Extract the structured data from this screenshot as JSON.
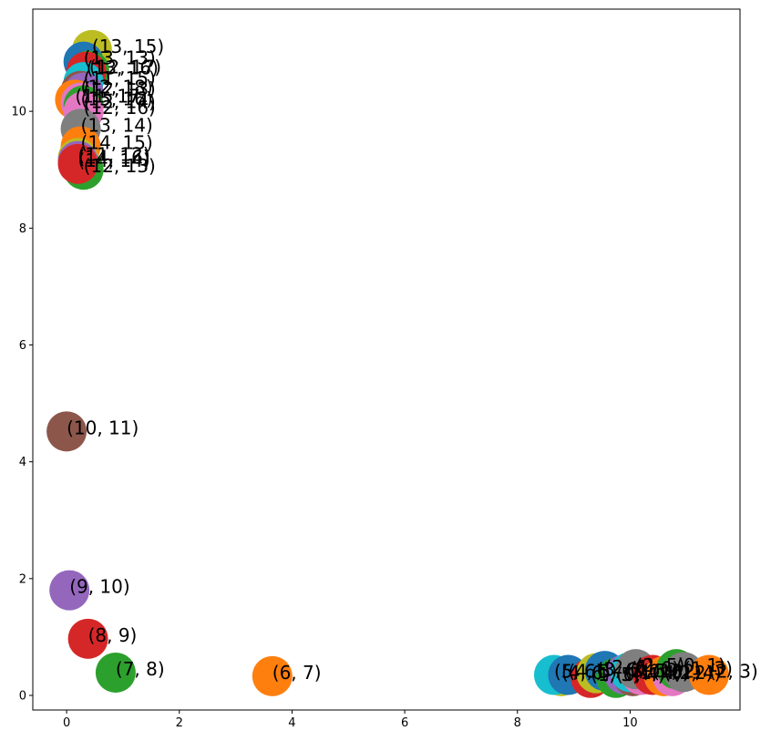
{
  "chart_data": {
    "type": "scatter",
    "title": "",
    "xlabel": "",
    "ylabel": "",
    "xlim": [
      -0.6,
      11.95
    ],
    "ylim": [
      -0.25,
      11.75
    ],
    "xticks": [
      0,
      2,
      4,
      6,
      8,
      10
    ],
    "yticks": [
      0,
      2,
      4,
      6,
      8,
      10
    ],
    "grid": false,
    "legend": "none",
    "points": [
      {
        "x": 0.45,
        "y": 11.05,
        "label": "(13, 15)",
        "color": "#bcbd22"
      },
      {
        "x": 0.3,
        "y": 10.85,
        "label": "(13, 13)",
        "color": "#1f77b4"
      },
      {
        "x": 0.4,
        "y": 10.7,
        "label": "(12, 17)",
        "color": "#2ca02c"
      },
      {
        "x": 0.35,
        "y": 10.68,
        "label": "(13, 16)",
        "color": "#d62728"
      },
      {
        "x": 0.3,
        "y": 10.5,
        "label": "(11, 15)",
        "color": "#17becf"
      },
      {
        "x": 0.25,
        "y": 10.35,
        "label": "(12, 18)",
        "color": "#8c564b"
      },
      {
        "x": 0.3,
        "y": 10.32,
        "label": "(12, 13)",
        "color": "#9467bd"
      },
      {
        "x": 0.15,
        "y": 10.2,
        "label": "(11, 17)",
        "color": "#ff7f0e"
      },
      {
        "x": 0.25,
        "y": 10.15,
        "label": "(15, 16)",
        "color": "#e377c2"
      },
      {
        "x": 0.3,
        "y": 10.1,
        "label": "(12, 14)",
        "color": "#2ca02c"
      },
      {
        "x": 0.3,
        "y": 10.0,
        "label": "(12, 16)",
        "color": "#e377c2"
      },
      {
        "x": 0.25,
        "y": 9.7,
        "label": "(13, 14)",
        "color": "#7f7f7f"
      },
      {
        "x": 0.25,
        "y": 9.4,
        "label": "(14, 15)",
        "color": "#ff7f0e"
      },
      {
        "x": 0.2,
        "y": 9.2,
        "label": "(11, 12)",
        "color": "#bcbd22"
      },
      {
        "x": 0.3,
        "y": 9.0,
        "label": "(12, 13)",
        "color": "#2ca02c"
      },
      {
        "x": 0.2,
        "y": 9.15,
        "label": "(14, 16)",
        "color": "#9467bd"
      },
      {
        "x": 0.2,
        "y": 9.1,
        "label": "(14, 14)",
        "color": "#d62728"
      },
      {
        "x": 0.0,
        "y": 4.52,
        "label": "(10, 11)",
        "color": "#8c564b"
      },
      {
        "x": 0.05,
        "y": 1.8,
        "label": "(9, 10)",
        "color": "#9467bd"
      },
      {
        "x": 0.38,
        "y": 0.97,
        "label": "(8, 9)",
        "color": "#d62728"
      },
      {
        "x": 0.87,
        "y": 0.39,
        "label": "(7, 8)",
        "color": "#2ca02c"
      },
      {
        "x": 3.65,
        "y": 0.33,
        "label": "(6, 7)",
        "color": "#ff7f0e"
      },
      {
        "x": 8.78,
        "y": 0.33,
        "label": "(4, 6)",
        "color": "#bcbd22"
      },
      {
        "x": 8.65,
        "y": 0.35,
        "label": "(5, 6)",
        "color": "#17becf"
      },
      {
        "x": 8.9,
        "y": 0.35,
        "label": "(4, 5)",
        "color": "#1f77b4"
      },
      {
        "x": 9.3,
        "y": 0.3,
        "label": "(1, 5)",
        "color": "#d62728"
      },
      {
        "x": 9.4,
        "y": 0.38,
        "label": "(3, 6)",
        "color": "#bcbd22"
      },
      {
        "x": 9.55,
        "y": 0.42,
        "label": "(2, 6)",
        "color": "#1f77b4"
      },
      {
        "x": 9.75,
        "y": 0.3,
        "label": "(0, 4)",
        "color": "#2ca02c"
      },
      {
        "x": 9.9,
        "y": 0.36,
        "label": "(3, 5)",
        "color": "#9467bd"
      },
      {
        "x": 10.05,
        "y": 0.33,
        "label": "(1, 4)",
        "color": "#8c564b"
      },
      {
        "x": 10.0,
        "y": 0.4,
        "label": "(1, 6)",
        "color": "#17becf"
      },
      {
        "x": 10.2,
        "y": 0.35,
        "label": "(0, 3)",
        "color": "#e377c2"
      },
      {
        "x": 10.1,
        "y": 0.45,
        "label": "(2, 5)",
        "color": "#7f7f7f"
      },
      {
        "x": 10.4,
        "y": 0.35,
        "label": "(1, 2)",
        "color": "#d62728"
      },
      {
        "x": 10.6,
        "y": 0.33,
        "label": "(0, 2)",
        "color": "#ff7f0e"
      },
      {
        "x": 10.75,
        "y": 0.33,
        "label": "(2, 4)",
        "color": "#e377c2"
      },
      {
        "x": 10.82,
        "y": 0.45,
        "label": "(0, 1)",
        "color": "#2ca02c"
      },
      {
        "x": 10.95,
        "y": 0.4,
        "label": "(1, 3)",
        "color": "#7f7f7f"
      },
      {
        "x": 11.4,
        "y": 0.35,
        "label": "(2, 3)",
        "color": "#ff7f0e"
      }
    ]
  }
}
